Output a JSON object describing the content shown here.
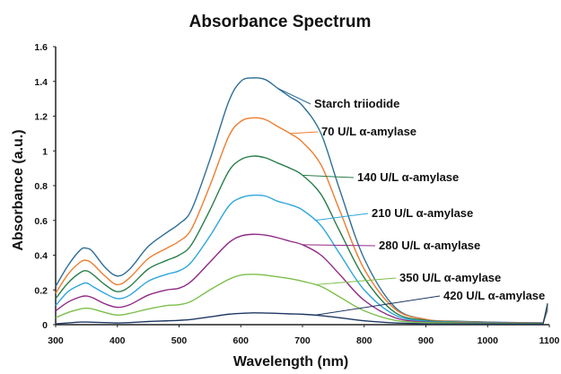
{
  "chart_data": {
    "type": "line",
    "title": "Absorbance Spectrum",
    "xlabel": "Wavelength (nm)",
    "ylabel": "Absorbance (a.u.)",
    "xlim": [
      300,
      1100
    ],
    "ylim": [
      0,
      1.6
    ],
    "x_ticks": [
      "300",
      "400",
      "500",
      "600",
      "700",
      "800",
      "900",
      "1000",
      "1100"
    ],
    "y_ticks": [
      "0",
      "0.2",
      "0.4",
      "0.6",
      "0.8",
      "1",
      "1.2",
      "1.4",
      "1.6"
    ],
    "grid": false,
    "legend": "inline labels with leader lines",
    "x": [
      300,
      320,
      340,
      350,
      360,
      380,
      400,
      420,
      450,
      480,
      500,
      520,
      550,
      580,
      600,
      620,
      640,
      660,
      680,
      700,
      730,
      760,
      800,
      850,
      900,
      950,
      1000,
      1050,
      1090
    ],
    "series": [
      {
        "name": "Starch triiodide",
        "color": "#2e6e96",
        "values": [
          0.22,
          0.34,
          0.43,
          0.44,
          0.42,
          0.33,
          0.28,
          0.32,
          0.45,
          0.53,
          0.58,
          0.66,
          0.95,
          1.28,
          1.4,
          1.42,
          1.41,
          1.36,
          1.31,
          1.26,
          1.1,
          0.78,
          0.38,
          0.1,
          0.03,
          0.02,
          0.015,
          0.012,
          0.01
        ]
      },
      {
        "name": "70 U/L α-amylase",
        "color": "#ed7d31",
        "values": [
          0.18,
          0.29,
          0.36,
          0.37,
          0.35,
          0.28,
          0.23,
          0.27,
          0.38,
          0.44,
          0.48,
          0.55,
          0.8,
          1.08,
          1.17,
          1.19,
          1.18,
          1.14,
          1.1,
          1.05,
          0.92,
          0.66,
          0.32,
          0.09,
          0.03,
          0.018,
          0.013,
          0.011,
          0.01
        ]
      },
      {
        "name": "140 U/L α-amylase",
        "color": "#2a7d4a",
        "values": [
          0.15,
          0.24,
          0.3,
          0.31,
          0.29,
          0.23,
          0.19,
          0.22,
          0.32,
          0.37,
          0.4,
          0.46,
          0.66,
          0.88,
          0.95,
          0.97,
          0.96,
          0.93,
          0.9,
          0.86,
          0.75,
          0.54,
          0.27,
          0.07,
          0.025,
          0.016,
          0.012,
          0.01,
          0.01
        ]
      },
      {
        "name": "210 U/L α-amylase",
        "color": "#2fa6dc",
        "values": [
          0.11,
          0.19,
          0.23,
          0.24,
          0.22,
          0.18,
          0.15,
          0.17,
          0.25,
          0.29,
          0.31,
          0.36,
          0.51,
          0.68,
          0.73,
          0.745,
          0.74,
          0.71,
          0.69,
          0.66,
          0.57,
          0.41,
          0.2,
          0.055,
          0.02,
          0.014,
          0.011,
          0.01,
          0.01
        ]
      },
      {
        "name": "280 U/L α-amylase",
        "color": "#8e2a86",
        "values": [
          0.08,
          0.13,
          0.16,
          0.165,
          0.155,
          0.12,
          0.1,
          0.115,
          0.17,
          0.2,
          0.21,
          0.25,
          0.36,
          0.47,
          0.51,
          0.52,
          0.515,
          0.5,
          0.48,
          0.46,
          0.4,
          0.29,
          0.14,
          0.04,
          0.015,
          0.012,
          0.01,
          0.01,
          0.01
        ]
      },
      {
        "name": "350 U/L α-amylase",
        "color": "#7cbf4a",
        "values": [
          0.04,
          0.07,
          0.09,
          0.095,
          0.09,
          0.07,
          0.055,
          0.065,
          0.09,
          0.11,
          0.115,
          0.135,
          0.2,
          0.26,
          0.285,
          0.29,
          0.285,
          0.275,
          0.265,
          0.25,
          0.22,
          0.16,
          0.08,
          0.025,
          0.012,
          0.01,
          0.008,
          0.008,
          0.008
        ]
      },
      {
        "name": "420 U/L α-amylase",
        "color": "#1f3864",
        "values": [
          0.005,
          0.01,
          0.015,
          0.015,
          0.014,
          0.012,
          0.01,
          0.012,
          0.018,
          0.022,
          0.025,
          0.03,
          0.045,
          0.06,
          0.065,
          0.068,
          0.067,
          0.065,
          0.062,
          0.06,
          0.052,
          0.04,
          0.022,
          0.01,
          0.005,
          0.004,
          0.004,
          0.004,
          0.004
        ]
      }
    ],
    "annotations": [
      {
        "text": "Starch triiodide",
        "series": 0,
        "at_x": 660
      },
      {
        "text": "70 U/L α-amylase",
        "series": 1,
        "at_x": 680
      },
      {
        "text": "140 U/L α-amylase",
        "series": 2,
        "at_x": 700
      },
      {
        "text": "210 U/L α-amylase",
        "series": 3,
        "at_x": 720
      },
      {
        "text": "280 U/L α-amylase",
        "series": 4,
        "at_x": 700
      },
      {
        "text": "350 U/L α-amylase",
        "series": 5,
        "at_x": 720
      },
      {
        "text": "420 U/L α-amylase",
        "series": 6,
        "at_x": 720
      }
    ]
  }
}
